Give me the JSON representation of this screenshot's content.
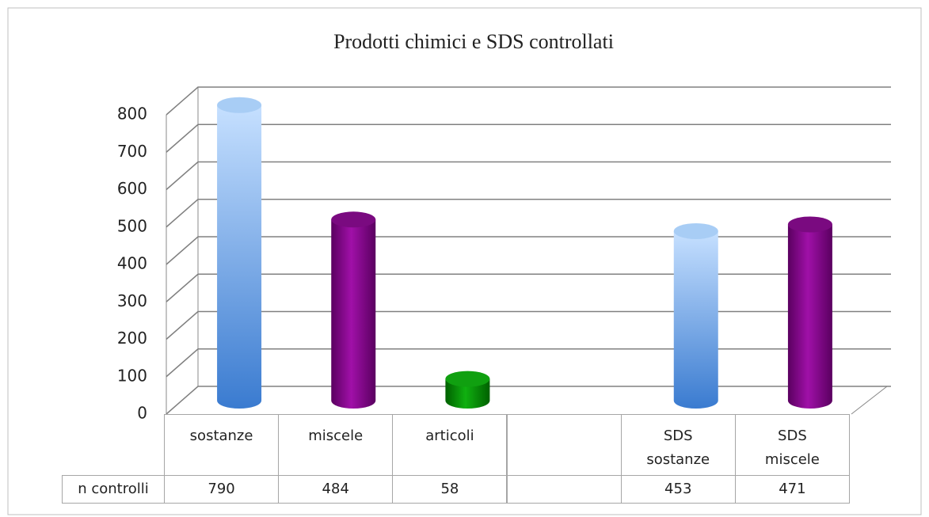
{
  "chart_data": {
    "type": "bar3d",
    "title": "Prodotti chimici e SDS controllati",
    "categories": [
      "sostanze",
      "miscele",
      "articoli",
      null,
      "SDS sostanze",
      "SDS miscele"
    ],
    "series": [
      {
        "name": "n controlli",
        "values": [
          790,
          484,
          58,
          null,
          453,
          471
        ],
        "colors": [
          "#5b9bd5",
          "#800080",
          "#00a000",
          null,
          "#5b9bd5",
          "#800080"
        ]
      }
    ],
    "ylim": [
      0,
      800
    ],
    "yticks": [
      0,
      100,
      200,
      300,
      400,
      500,
      600,
      700,
      800
    ],
    "grid": true
  }
}
